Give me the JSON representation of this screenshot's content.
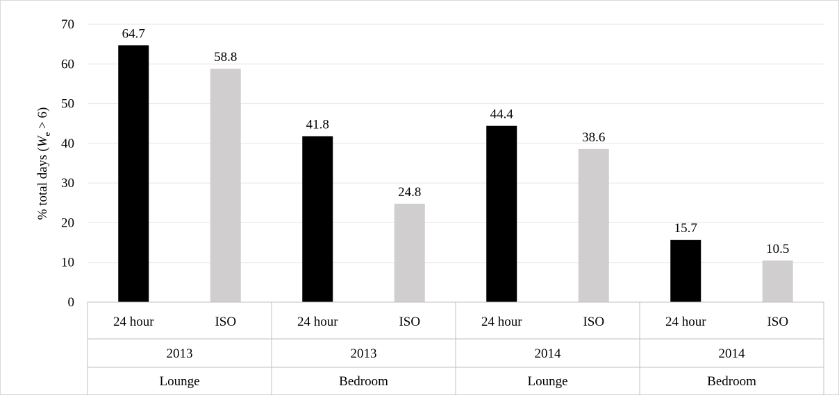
{
  "chart_data": {
    "type": "bar",
    "ylabel_parts": [
      "% total days (",
      "W",
      "e",
      " > 6)"
    ],
    "ylim": [
      0,
      70
    ],
    "yticks": [
      0,
      10,
      20,
      30,
      40,
      50,
      60,
      70
    ],
    "grid": true,
    "legend": "none",
    "categories": [
      {
        "label": "24 hour",
        "year": "2013",
        "room": "Lounge",
        "value": 64.7,
        "value_label": "64.7"
      },
      {
        "label": "ISO",
        "year": "2013",
        "room": "Lounge",
        "value": 58.8,
        "value_label": "58.8"
      },
      {
        "label": "24 hour",
        "year": "2013",
        "room": "Bedroom",
        "value": 41.8,
        "value_label": "41.8"
      },
      {
        "label": "ISO",
        "year": "2013",
        "room": "Bedroom",
        "value": 24.8,
        "value_label": "24.8"
      },
      {
        "label": "24 hour",
        "year": "2014",
        "room": "Lounge",
        "value": 44.4,
        "value_label": "44.4"
      },
      {
        "label": "ISO",
        "year": "2014",
        "room": "Lounge",
        "value": 38.6,
        "value_label": "38.6"
      },
      {
        "label": "24 hour",
        "year": "2014",
        "room": "Bedroom",
        "value": 15.7,
        "value_label": "15.7"
      },
      {
        "label": "ISO",
        "year": "2014",
        "room": "Bedroom",
        "value": 10.5,
        "value_label": "10.5"
      }
    ],
    "groups": [
      {
        "year": "2013",
        "room": "Lounge"
      },
      {
        "year": "2013",
        "room": "Bedroom"
      },
      {
        "year": "2014",
        "room": "Lounge"
      },
      {
        "year": "2014",
        "room": "Bedroom"
      }
    ],
    "colors": {
      "24 hour": "#000000",
      "ISO": "#d0cece"
    }
  }
}
